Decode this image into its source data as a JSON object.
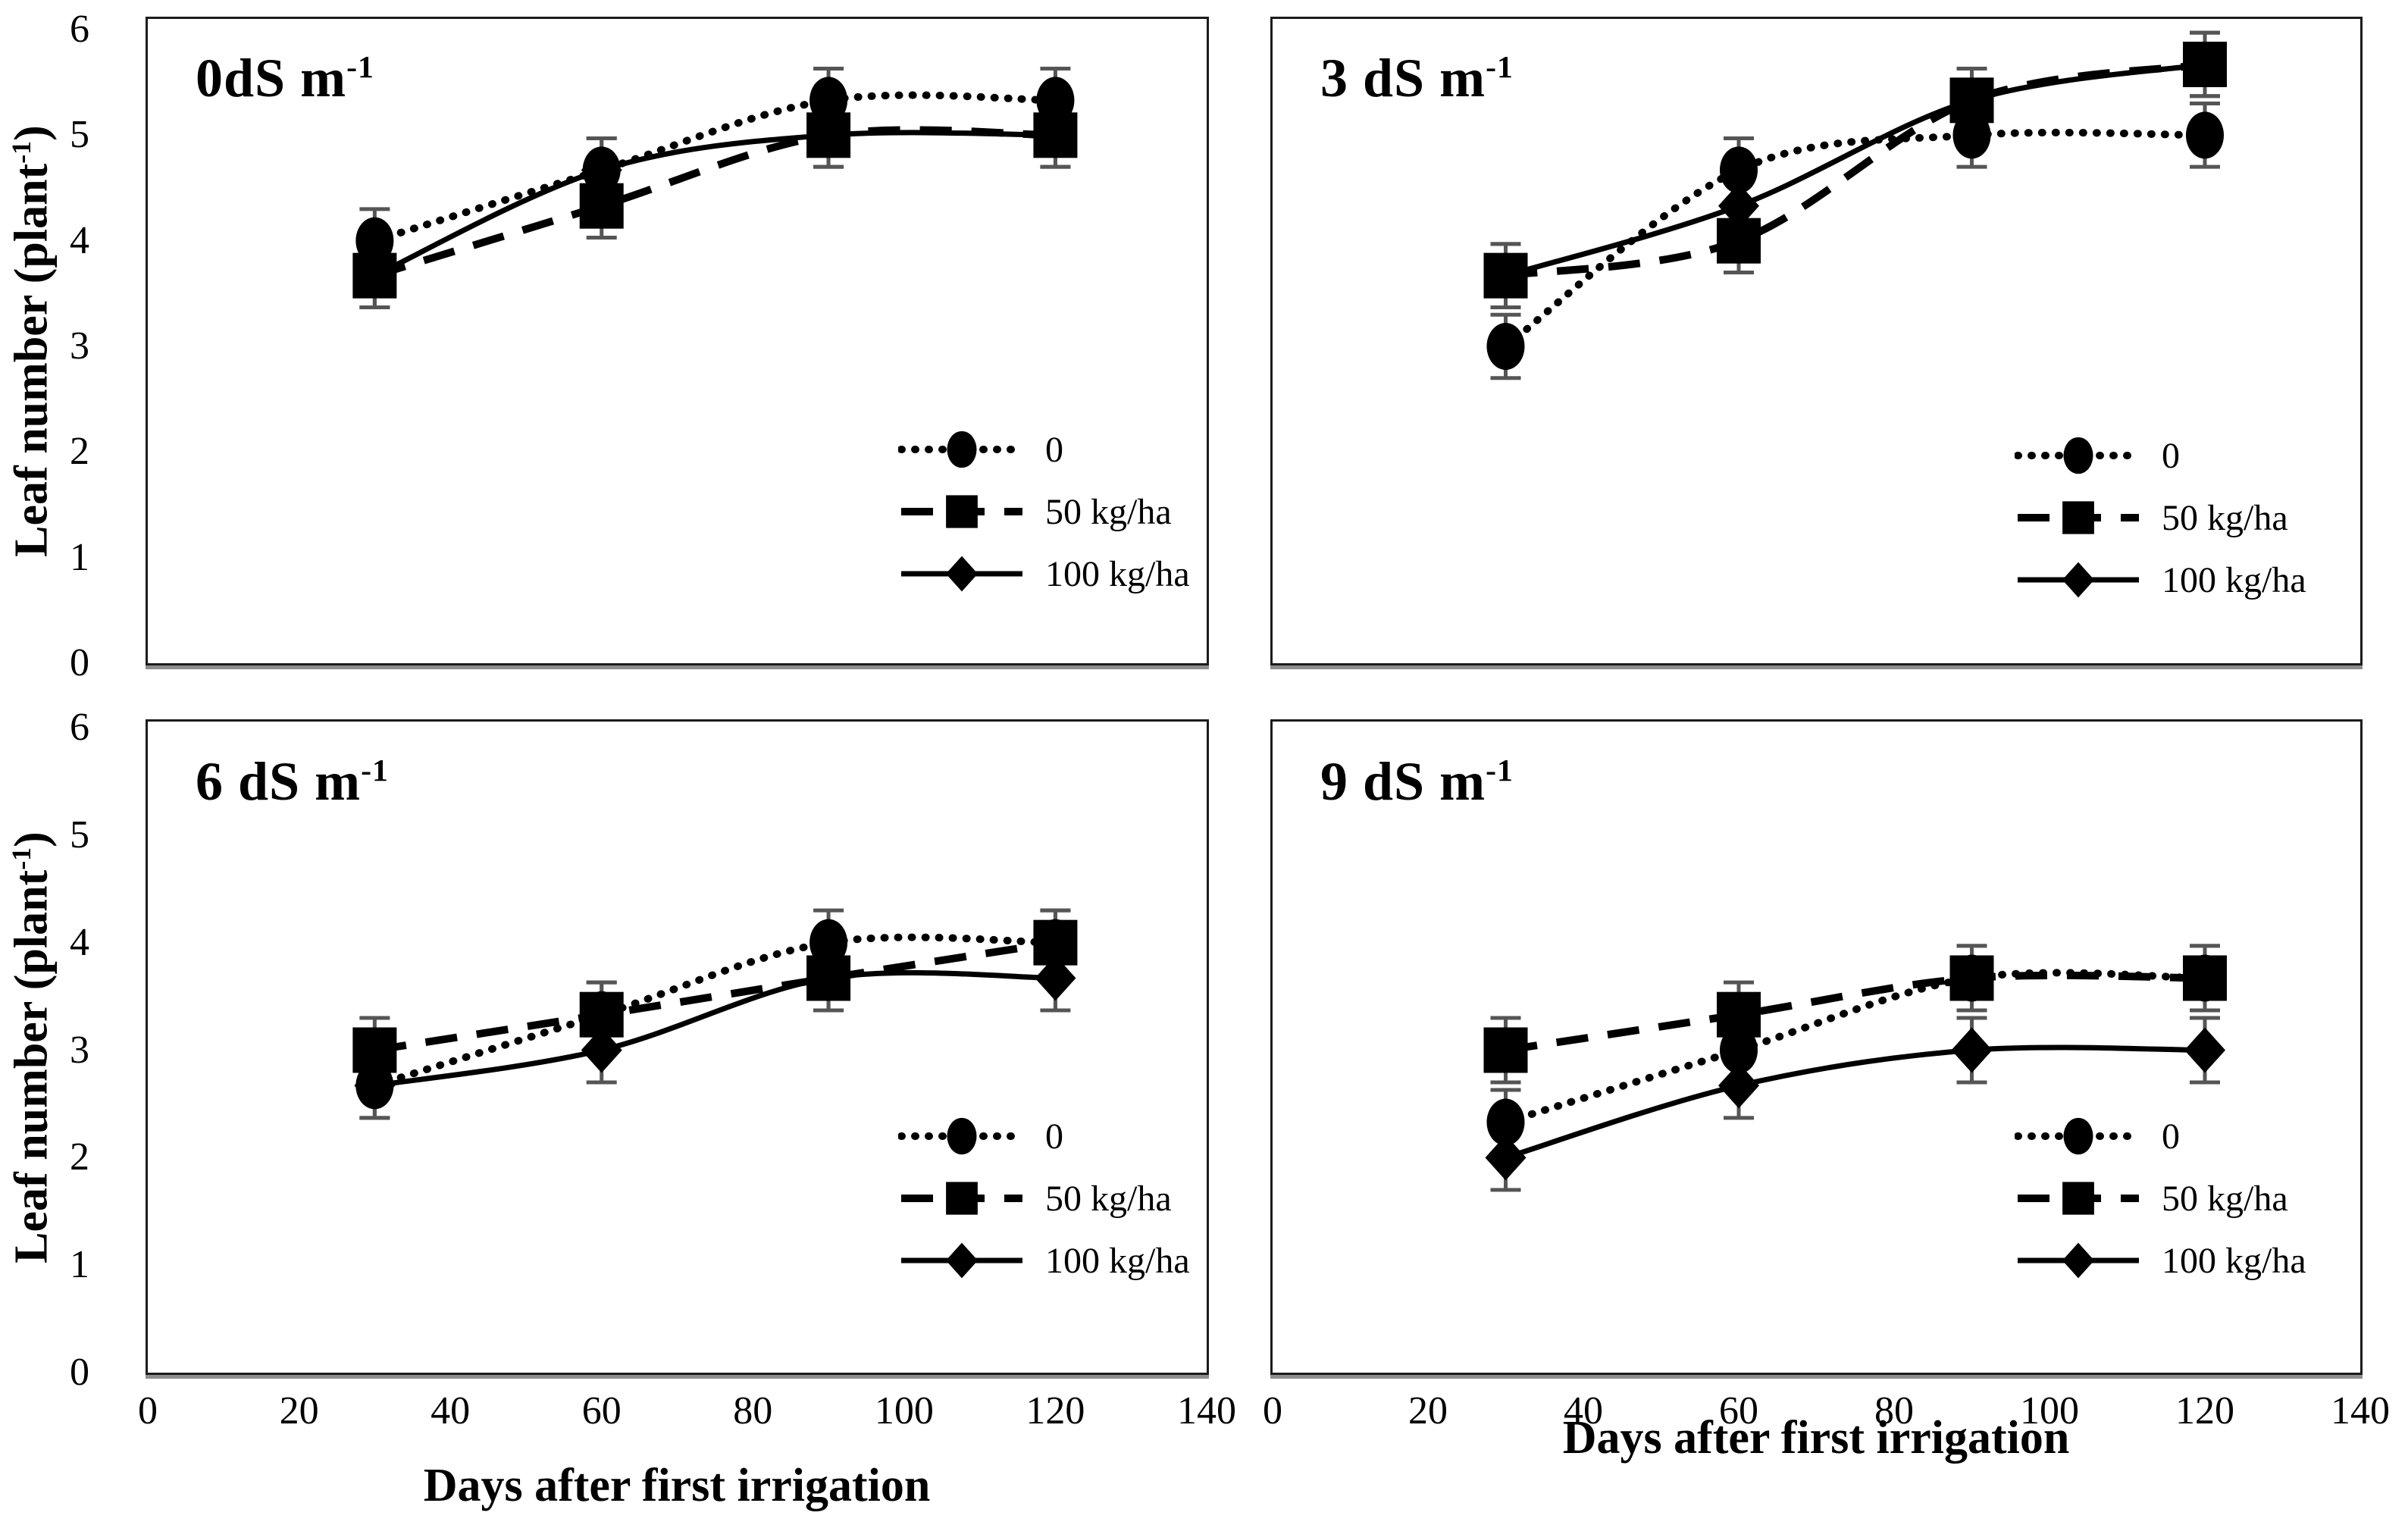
{
  "figure": {
    "y_axis_label_pre": "Leaf number (plant",
    "y_axis_label_sup": "-1",
    "y_axis_label_post": ")",
    "x_axis_label": "Days after first irrigation",
    "x_ticks": [
      "0",
      "20",
      "40",
      "60",
      "80",
      "100",
      "120",
      "140"
    ],
    "y_ticks": [
      "0",
      "1",
      "2",
      "3",
      "4",
      "5",
      "6"
    ],
    "x_range": [
      0,
      140
    ],
    "y_range": [
      0,
      6
    ]
  },
  "legend": {
    "items": [
      {
        "label": "0",
        "marker": "circle",
        "line": "dotted"
      },
      {
        "label": "50 kg/ha",
        "marker": "square",
        "line": "dashed"
      },
      {
        "label": "100 kg/ha",
        "marker": "diamond",
        "line": "solid"
      }
    ]
  },
  "colors": {
    "ink": "#000000",
    "frame": "#1c1c1c",
    "error_bar": "#555555",
    "background": "#ffffff"
  },
  "chart_data": [
    {
      "type": "line",
      "title_pre": "0dS m",
      "title_sup": "-1",
      "xlabel": "Days after first irrigation",
      "ylabel": "Leaf number (plant-1)",
      "x": [
        30,
        60,
        90,
        120
      ],
      "ylim": [
        0,
        6
      ],
      "error_bar": 0.3,
      "series": [
        {
          "name": "0",
          "marker": "circle",
          "line": "dotted",
          "values": [
            4.0,
            4.67,
            5.33,
            5.33
          ]
        },
        {
          "name": "50 kg/ha",
          "marker": "square",
          "line": "dashed",
          "values": [
            3.67,
            4.33,
            5.0,
            5.0
          ]
        },
        {
          "name": "100 kg/ha",
          "marker": "diamond",
          "line": "solid",
          "values": [
            3.67,
            4.67,
            5.0,
            5.0
          ]
        }
      ]
    },
    {
      "type": "line",
      "title_pre": "3 dS m",
      "title_sup": "-1",
      "xlabel": "Days after first irrigation",
      "ylabel": "Leaf number (plant-1)",
      "x": [
        30,
        60,
        90,
        120
      ],
      "ylim": [
        0,
        6
      ],
      "error_bar": 0.3,
      "series": [
        {
          "name": "0",
          "marker": "circle",
          "line": "dotted",
          "values": [
            3.0,
            4.67,
            5.0,
            5.0
          ]
        },
        {
          "name": "50 kg/ha",
          "marker": "square",
          "line": "dashed",
          "values": [
            3.67,
            4.0,
            5.33,
            5.67
          ]
        },
        {
          "name": "100 kg/ha",
          "marker": "diamond",
          "line": "solid",
          "values": [
            3.67,
            4.33,
            5.33,
            5.67
          ]
        }
      ]
    },
    {
      "type": "line",
      "title_pre": "6 dS m",
      "title_sup": "-1",
      "xlabel": "Days after first irrigation",
      "ylabel": "Leaf number (plant-1)",
      "x": [
        30,
        60,
        90,
        120
      ],
      "ylim": [
        0,
        6
      ],
      "error_bar": 0.3,
      "series": [
        {
          "name": "0",
          "marker": "circle",
          "line": "dotted",
          "values": [
            2.67,
            3.33,
            4.0,
            4.0
          ]
        },
        {
          "name": "50 kg/ha",
          "marker": "square",
          "line": "dashed",
          "values": [
            3.0,
            3.33,
            3.67,
            4.0
          ]
        },
        {
          "name": "100 kg/ha",
          "marker": "diamond",
          "line": "solid",
          "values": [
            2.67,
            3.0,
            3.67,
            3.67
          ]
        }
      ]
    },
    {
      "type": "line",
      "title_pre": "9 dS m",
      "title_sup": "-1",
      "xlabel": "Days after first irrigation",
      "ylabel": "Leaf number (plant-1)",
      "x": [
        30,
        60,
        90,
        120
      ],
      "ylim": [
        0,
        6
      ],
      "error_bar": 0.3,
      "series": [
        {
          "name": "0",
          "marker": "circle",
          "line": "dotted",
          "values": [
            2.33,
            3.0,
            3.67,
            3.67
          ]
        },
        {
          "name": "50 kg/ha",
          "marker": "square",
          "line": "dashed",
          "values": [
            3.0,
            3.33,
            3.67,
            3.67
          ]
        },
        {
          "name": "100 kg/ha",
          "marker": "diamond",
          "line": "solid",
          "values": [
            2.0,
            2.67,
            3.0,
            3.0
          ]
        }
      ]
    }
  ]
}
